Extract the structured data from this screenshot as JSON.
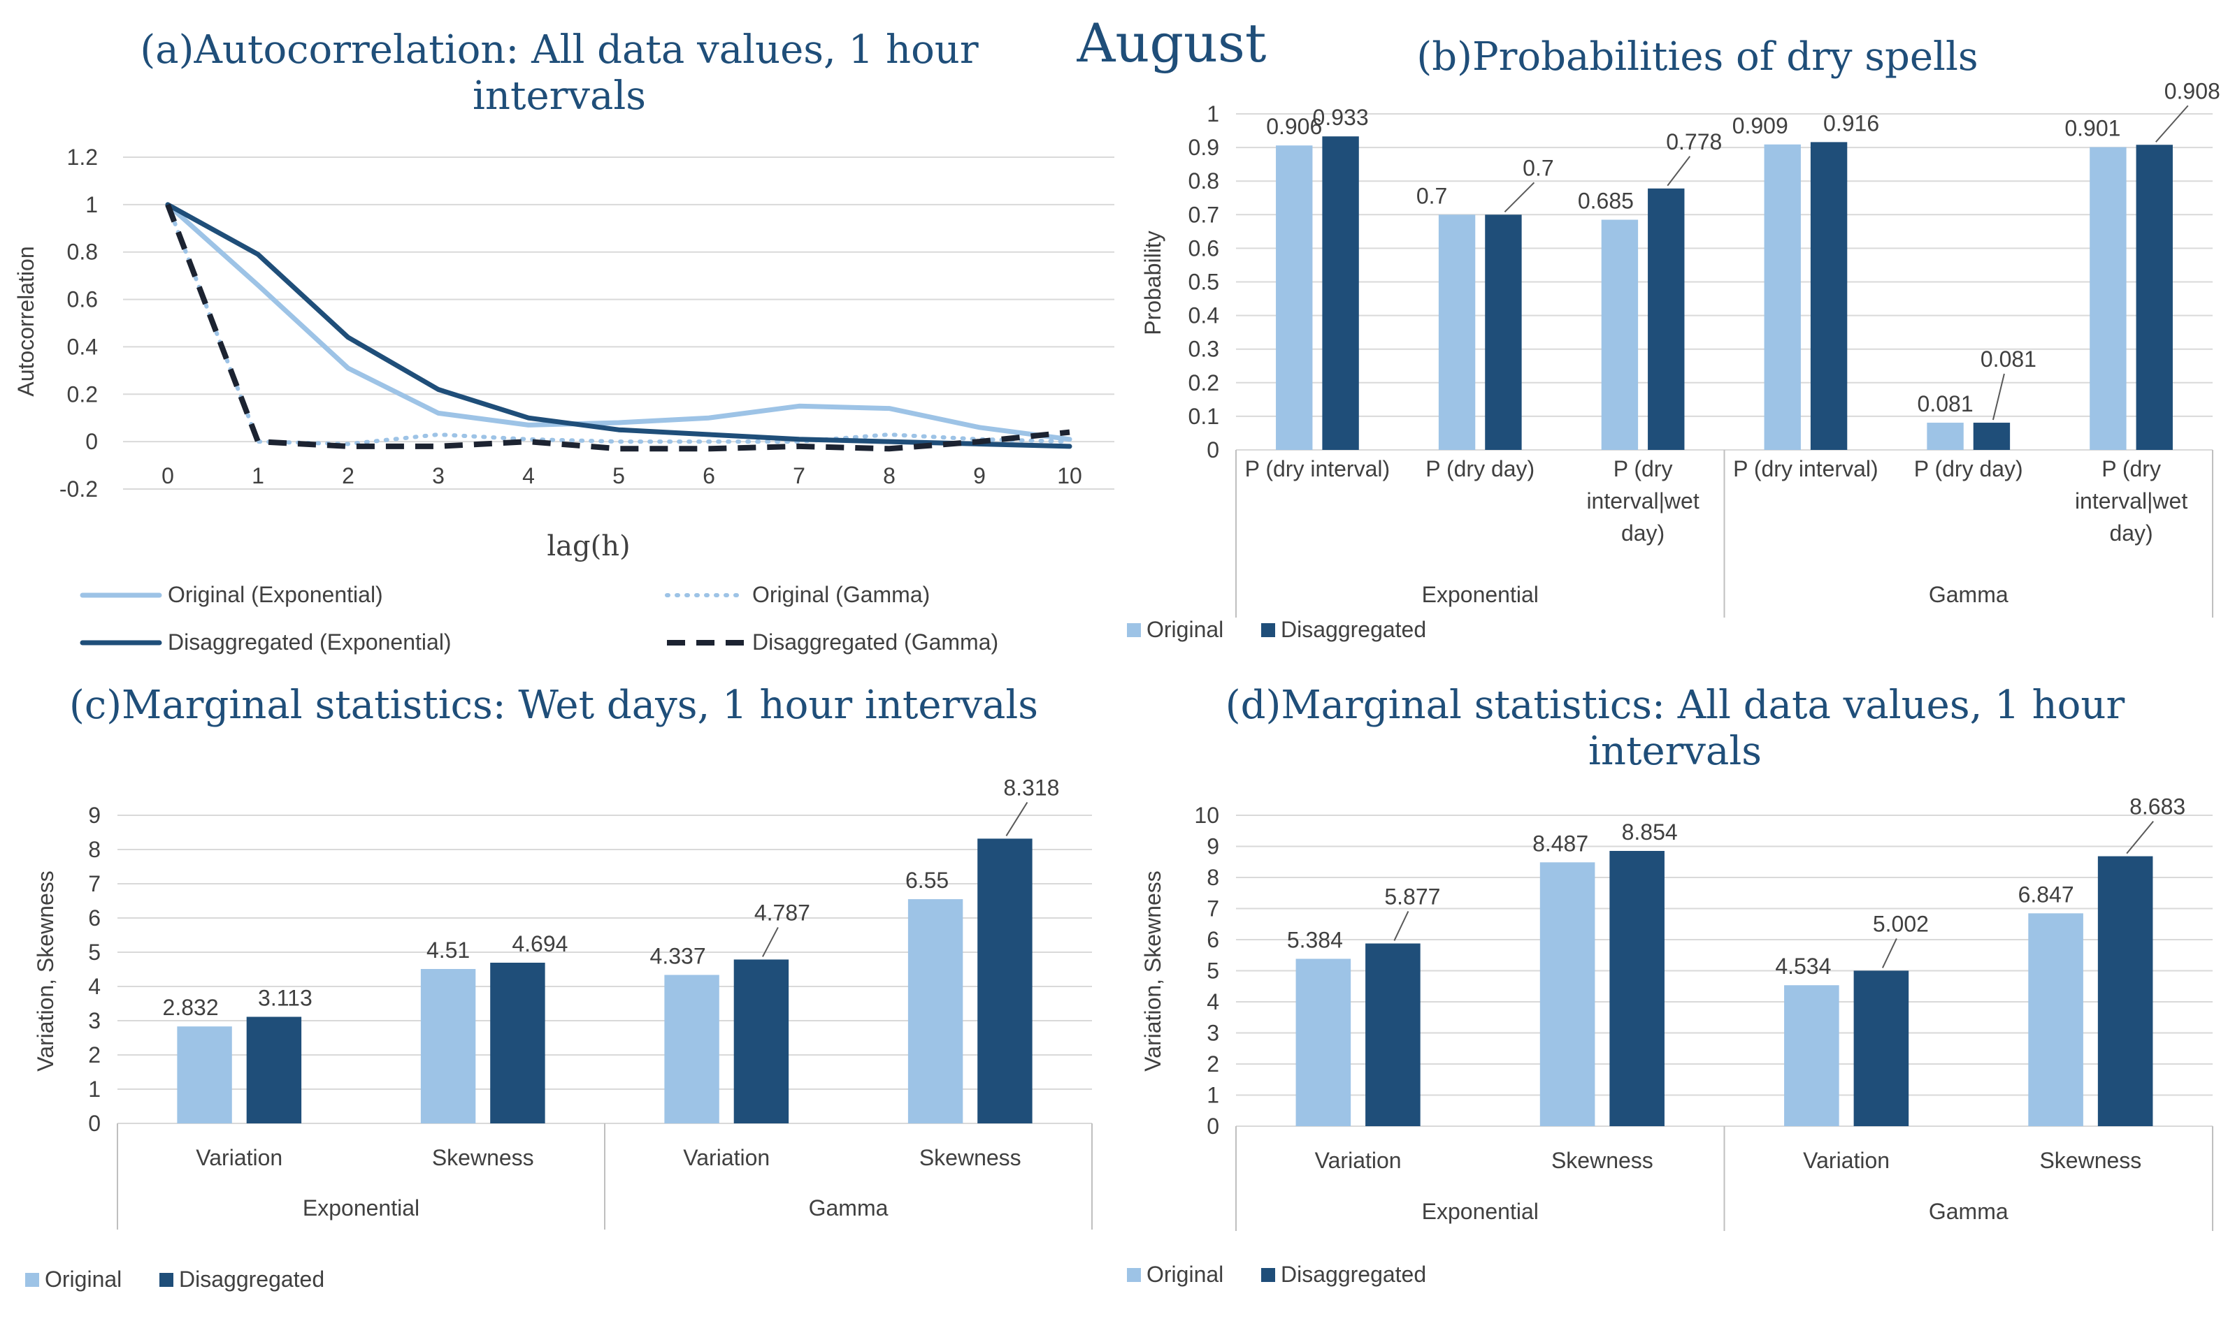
{
  "figure_title": "August",
  "colors": {
    "original": "#9dc3e6",
    "disaggregated": "#1f4e79",
    "title": "#1f4e79",
    "text": "#404040"
  },
  "chart_data": [
    {
      "id": "a",
      "type": "line",
      "panel_label": "(a)",
      "title_lines": [
        "Autocorrelation: All data values, 1 hour",
        "intervals"
      ],
      "xlabel": "lag(h)",
      "ylabel": "Autocorrelation",
      "x": [
        0,
        1,
        2,
        3,
        4,
        5,
        6,
        7,
        8,
        9,
        10
      ],
      "xticks": [
        "0",
        "1",
        "2",
        "3",
        "4",
        "5",
        "6",
        "7",
        "8",
        "9",
        "10"
      ],
      "ylim": [
        -0.2,
        1.2
      ],
      "yticks": [
        "-0.2",
        "0",
        "0.2",
        "0.4",
        "0.6",
        "0.8",
        "1",
        "1.2"
      ],
      "series": [
        {
          "name": "Original (Exponential)",
          "values": [
            1.0,
            0.66,
            0.31,
            0.12,
            0.07,
            0.08,
            0.1,
            0.15,
            0.14,
            0.06,
            0.01
          ]
        },
        {
          "name": "Original (Gamma)",
          "values": [
            1.0,
            0.0,
            -0.01,
            0.03,
            0.01,
            0.0,
            0.0,
            0.0,
            0.03,
            0.01,
            0.0
          ]
        },
        {
          "name": "Disaggregated (Exponential)",
          "values": [
            1.0,
            0.79,
            0.44,
            0.22,
            0.1,
            0.05,
            0.03,
            0.01,
            0.0,
            -0.01,
            -0.02
          ]
        },
        {
          "name": "Disaggregated (Gamma)",
          "values": [
            1.0,
            0.0,
            -0.02,
            -0.02,
            0.0,
            -0.03,
            -0.03,
            -0.02,
            -0.03,
            0.0,
            0.04
          ]
        }
      ]
    },
    {
      "id": "b",
      "type": "bar",
      "panel_label": "(b)",
      "title_lines": [
        "Probabilities of dry spells"
      ],
      "ylabel": "Probability",
      "ylim": [
        0,
        1
      ],
      "yticks": [
        "0",
        "0.1",
        "0.2",
        "0.3",
        "0.4",
        "0.5",
        "0.6",
        "0.7",
        "0.8",
        "0.9",
        "1"
      ],
      "groups": [
        "Exponential",
        "Gamma"
      ],
      "categories": [
        [
          "P (dry interval)"
        ],
        [
          "P (dry day)"
        ],
        [
          "P (dry",
          "interval|wet",
          "day)"
        ],
        [
          "P (dry interval)"
        ],
        [
          "P (dry day)"
        ],
        [
          "P (dry",
          "interval|wet",
          "day)"
        ]
      ],
      "series": [
        {
          "name": "Original",
          "values": [
            0.906,
            0.7,
            0.685,
            0.909,
            0.081,
            0.901
          ],
          "labels": [
            "0.906",
            "0.7",
            "0.685",
            "0.909",
            "0.081",
            "0.901"
          ]
        },
        {
          "name": "Disaggregated",
          "values": [
            0.933,
            0.7,
            0.778,
            0.916,
            0.081,
            0.908
          ],
          "labels": [
            "0.933",
            "0.7",
            "0.778",
            "0.916",
            "0.081",
            "0.908"
          ]
        }
      ],
      "legend": [
        "Original",
        "Disaggregated"
      ]
    },
    {
      "id": "c",
      "type": "bar",
      "panel_label": "(c)",
      "title_lines": [
        "Marginal statistics: Wet days, 1 hour intervals"
      ],
      "ylabel": "Variation, Skewness",
      "ylim": [
        0,
        9
      ],
      "yticks": [
        "0",
        "1",
        "2",
        "3",
        "4",
        "5",
        "6",
        "7",
        "8",
        "9"
      ],
      "groups": [
        "Exponential",
        "Gamma"
      ],
      "categories": [
        [
          "Variation"
        ],
        [
          "Skewness"
        ],
        [
          "Variation"
        ],
        [
          "Skewness"
        ]
      ],
      "series": [
        {
          "name": "Original",
          "values": [
            2.832,
            4.51,
            4.337,
            6.55
          ],
          "labels": [
            "2.832",
            "4.51",
            "4.337",
            "6.55"
          ]
        },
        {
          "name": "Disaggregated",
          "values": [
            3.113,
            4.694,
            4.787,
            8.318
          ],
          "labels": [
            "3.113",
            "4.694",
            "4.787",
            "8.318"
          ]
        }
      ],
      "legend": [
        "Original",
        "Disaggregated"
      ]
    },
    {
      "id": "d",
      "type": "bar",
      "panel_label": "(d)",
      "title_lines": [
        "Marginal statistics: All data values, 1 hour",
        "intervals"
      ],
      "ylabel": "Variation, Skewness",
      "ylim": [
        0,
        10
      ],
      "yticks": [
        "0",
        "1",
        "2",
        "3",
        "4",
        "5",
        "6",
        "7",
        "8",
        "9",
        "10"
      ],
      "groups": [
        "Exponential",
        "Gamma"
      ],
      "categories": [
        [
          "Variation"
        ],
        [
          "Skewness"
        ],
        [
          "Variation"
        ],
        [
          "Skewness"
        ]
      ],
      "series": [
        {
          "name": "Original",
          "values": [
            5.384,
            8.487,
            4.534,
            6.847
          ],
          "labels": [
            "5.384",
            "8.487",
            "4.534",
            "6.847"
          ]
        },
        {
          "name": "Disaggregated",
          "values": [
            5.877,
            8.854,
            5.002,
            8.683
          ],
          "labels": [
            "5.877",
            "8.854",
            "5.002",
            "8.683"
          ]
        }
      ],
      "legend": [
        "Original",
        "Disaggregated"
      ]
    }
  ]
}
